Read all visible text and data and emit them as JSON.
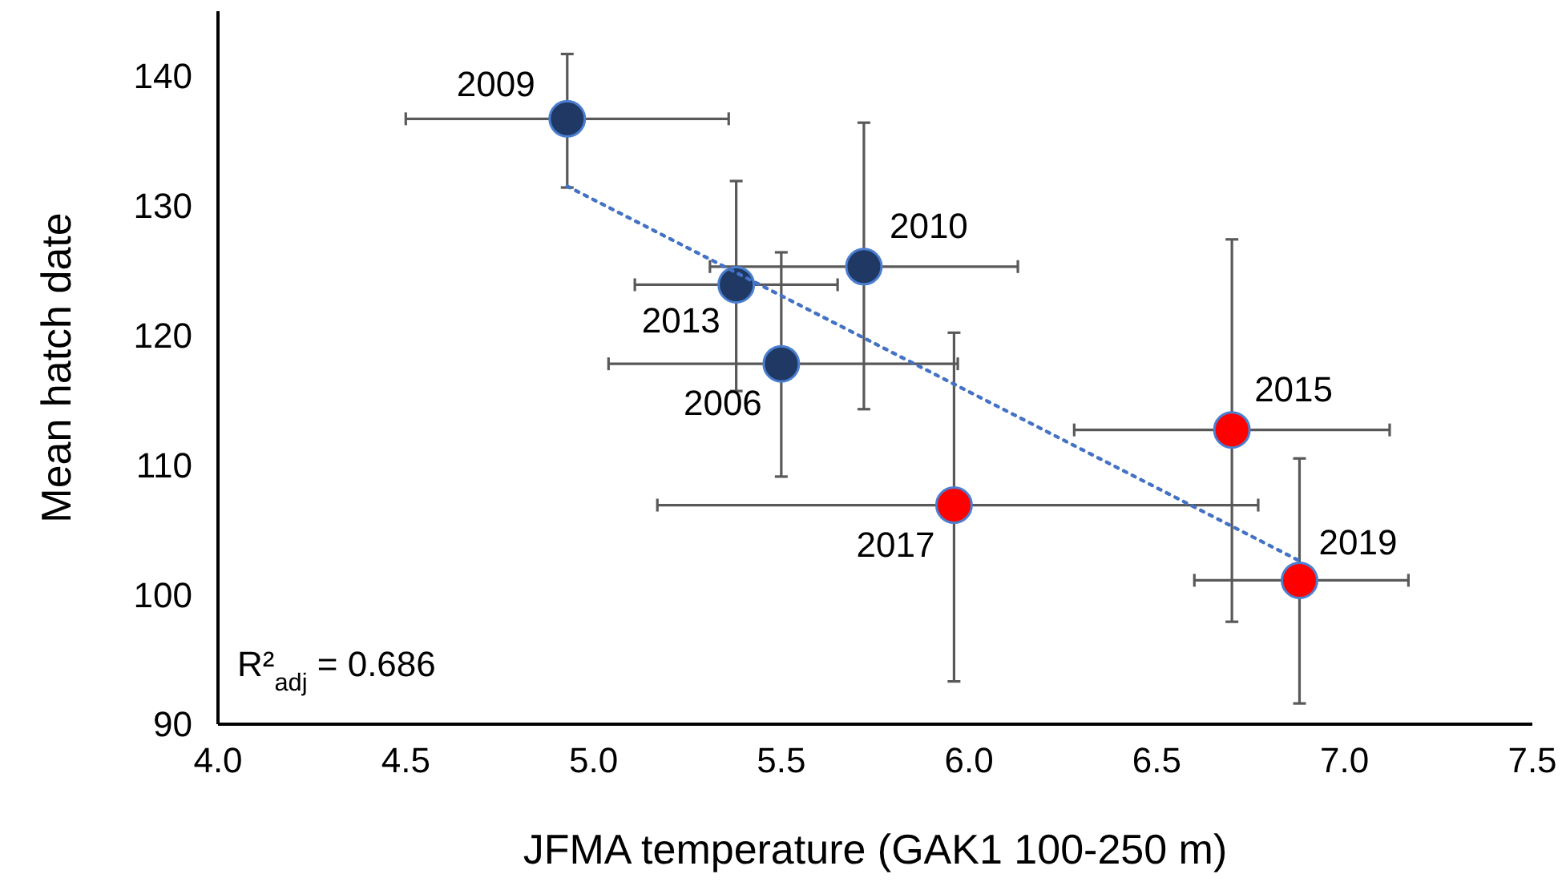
{
  "chart_data": {
    "type": "scatter",
    "xlabel": "JFMA temperature  (GAK1 100-250 m)",
    "ylabel": "Mean  hatch date",
    "xlim": [
      4.0,
      7.5
    ],
    "xticks": [
      {
        "value": 4,
        "label": "4.0"
      },
      {
        "value": 4.5,
        "label": "4.5"
      },
      {
        "value": 5,
        "label": "5.0"
      },
      {
        "value": 5.5,
        "label": "5.5"
      },
      {
        "value": 6,
        "label": "6.0"
      },
      {
        "value": 6.5,
        "label": "6.5"
      },
      {
        "value": 7,
        "label": "7.0"
      },
      {
        "value": 7.5,
        "label": "7.5"
      }
    ],
    "ylim": [
      90,
      145
    ],
    "yticks": [
      90,
      100,
      110,
      120,
      130,
      140
    ],
    "grid": false,
    "marker": "circle",
    "series": [
      {
        "color": "#1f3864",
        "x": [
          4.93,
          5.38,
          5.5,
          5.72
        ],
        "values": [
          136.7,
          123.9,
          117.8,
          125.3
        ],
        "errors": [
          [
            131.4,
            141.7
          ],
          [
            115.7,
            131.9
          ],
          [
            109.1,
            126.4
          ],
          [
            114.3,
            136.4
          ]
        ],
        "xerrors": [
          [
            4.5,
            5.36
          ],
          [
            5.11,
            5.65
          ],
          [
            5.04,
            5.97
          ],
          [
            5.31,
            6.13
          ]
        ]
      },
      {
        "color": "#ff0000",
        "x": [
          5.96,
          6.7,
          6.88
        ],
        "values": [
          106.9,
          112.7,
          101.1
        ],
        "errors": [
          [
            93.3,
            120.2
          ],
          [
            97.9,
            127.4
          ],
          [
            91.6,
            110.5
          ]
        ],
        "xerrors": [
          [
            5.17,
            6.77
          ],
          [
            6.28,
            7.12
          ],
          [
            6.6,
            7.17
          ]
        ]
      },
      {
        "type": "line",
        "color": "#4472c4",
        "line_style": "dotted",
        "marker": "none",
        "x": [
          4.93,
          6.88
        ],
        "values": [
          131.5,
          102.6
        ]
      }
    ],
    "annotations": [
      {
        "text": "2009",
        "x": 4.93,
        "y": 136.7
      },
      {
        "text": "2013",
        "x": 5.38,
        "y": 123.9
      },
      {
        "text": "2006",
        "x": 5.5,
        "y": 117.8
      },
      {
        "text": "2010",
        "x": 5.72,
        "y": 125.3
      },
      {
        "text": "2017",
        "x": 5.96,
        "y": 106.9
      },
      {
        "text": "2015",
        "x": 6.7,
        "y": 112.7
      },
      {
        "text": "2019",
        "x": 6.88,
        "y": 101.1
      },
      "R²$_{adj}$ = 0.686"
    ]
  }
}
